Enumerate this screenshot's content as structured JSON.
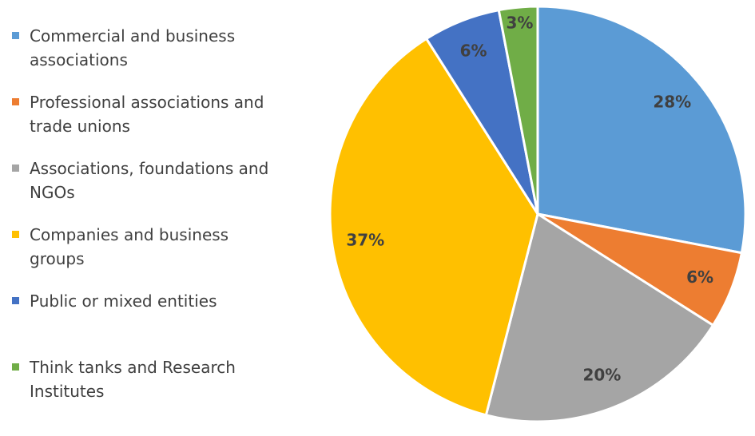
{
  "chart_data": {
    "type": "pie",
    "categories": [
      "Commercial and business associations",
      "Professional associations and trade unions",
      "Associations, foundations and NGOs",
      "Companies and business groups",
      "Public or mixed entities",
      "Think tanks and Research Institutes"
    ],
    "values": [
      28,
      6,
      20,
      37,
      6,
      3
    ],
    "value_labels": [
      "28%",
      "6%",
      "20%",
      "37%",
      "6%",
      "3%"
    ],
    "colors": [
      "#5b9bd5",
      "#ed7d31",
      "#a5a5a5",
      "#ffc000",
      "#4472c4",
      "#70ad47"
    ],
    "legend": "left"
  }
}
